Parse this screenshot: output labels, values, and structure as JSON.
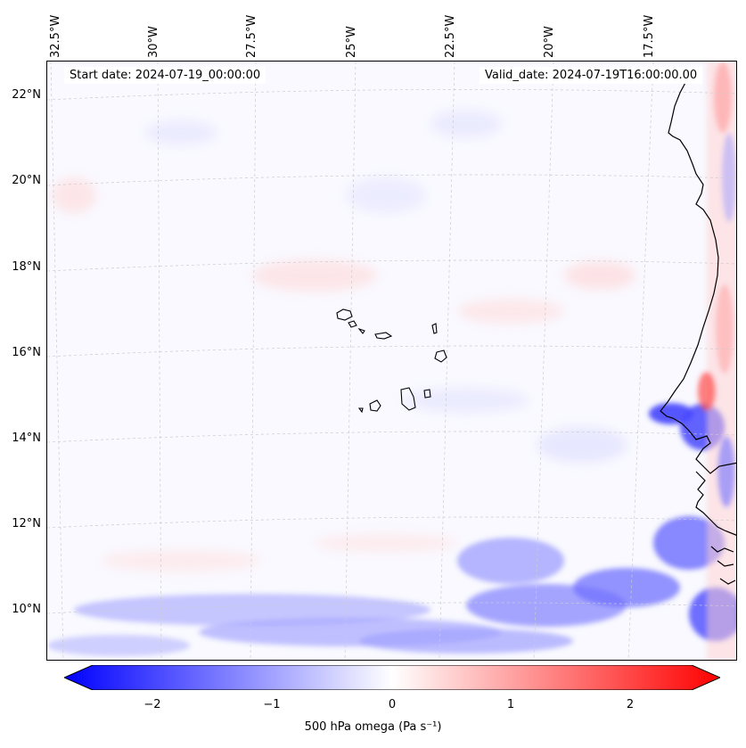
{
  "header": {
    "start_date": "Start date: 2024-07-19_00:00:00",
    "valid_date": "Valid_date: 2024-07-19T16:00:00.00"
  },
  "axes": {
    "lon_labels": [
      "32.5°W",
      "30°W",
      "27.5°W",
      "25°W",
      "22.5°W",
      "20°W",
      "17.5°W"
    ],
    "lat_labels": [
      "22°N",
      "20°N",
      "18°N",
      "16°N",
      "14°N",
      "12°N",
      "10°N"
    ]
  },
  "colorbar": {
    "ticks": [
      "−2",
      "−1",
      "0",
      "1",
      "2"
    ],
    "label": "500 hPa omega (Pa s⁻¹)",
    "colors": {
      "neg": "#0000ff",
      "mid": "#ffffff",
      "pos": "#ff0000"
    }
  },
  "map": {
    "background_color": "#f9f9ff",
    "coast_color": "#000000",
    "grid_color": "#cccccc"
  }
}
